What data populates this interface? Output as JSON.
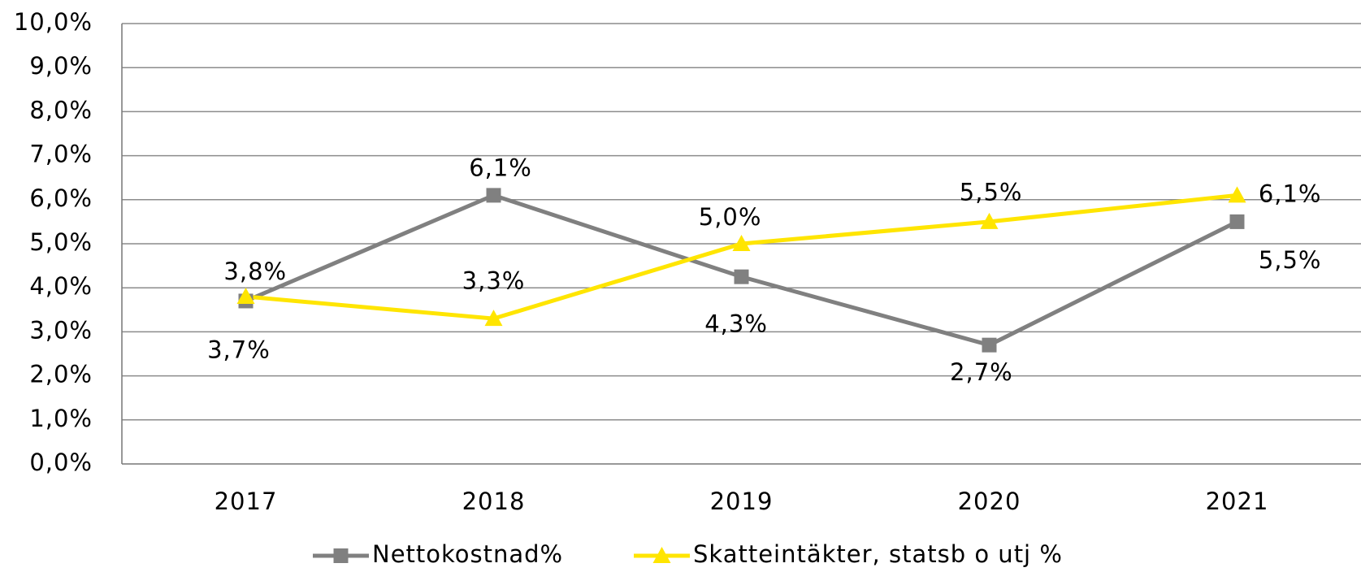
{
  "chart_data": {
    "type": "line",
    "categories": [
      "2017",
      "2018",
      "2019",
      "2020",
      "2021"
    ],
    "series": [
      {
        "name": "Nettokostnad%",
        "color": "#808080",
        "marker": "square",
        "values": [
          3.7,
          6.1,
          4.25,
          2.7,
          5.5
        ],
        "value_labels": [
          "3,7%",
          "6,1%",
          "4,3%",
          "2,7%",
          "5,5%"
        ]
      },
      {
        "name": "Skatteintäkter, statsb o utj %",
        "color": "#FFE500",
        "marker": "triangle",
        "values": [
          3.8,
          3.3,
          5.0,
          5.5,
          6.1
        ],
        "value_labels": [
          "3,8%",
          "3,3%",
          "5,0%",
          "5,5%",
          "6,1%"
        ]
      }
    ],
    "ylim": [
      0,
      10
    ],
    "yticks": [
      {
        "value": 0,
        "label": "0,0%"
      },
      {
        "value": 1,
        "label": "1,0%"
      },
      {
        "value": 2,
        "label": "2,0%"
      },
      {
        "value": 3,
        "label": "3,0%"
      },
      {
        "value": 4,
        "label": "4,0%"
      },
      {
        "value": 5,
        "label": "5,0%"
      },
      {
        "value": 6,
        "label": "6,0%"
      },
      {
        "value": 7,
        "label": "7,0%"
      },
      {
        "value": 8,
        "label": "8,0%"
      },
      {
        "value": 9,
        "label": "9,0%"
      },
      {
        "value": 10,
        "label": "10,0%"
      }
    ],
    "grid": true,
    "legend": "bottom"
  }
}
